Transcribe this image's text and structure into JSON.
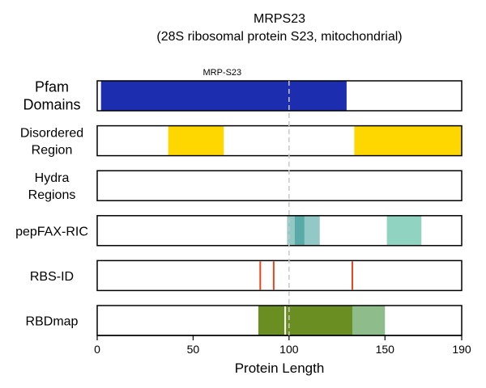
{
  "chart_data": {
    "type": "bar",
    "title": "MRPS23",
    "subtitle": "(28S ribosomal protein S23, mitochondrial)",
    "xlabel": "Protein Length",
    "xlim": [
      0,
      190
    ],
    "xticks": [
      0,
      50,
      100,
      150,
      190
    ],
    "reference_line": 100,
    "tracks": [
      {
        "label": [
          "Pfam",
          "Domains"
        ],
        "big": true,
        "segments": [
          {
            "start": 2,
            "end": 130,
            "color": "#1c2db0",
            "label": "MRP-S23"
          }
        ],
        "lines": []
      },
      {
        "label": [
          "Disordered",
          "Region"
        ],
        "segments": [
          {
            "start": 37,
            "end": 66,
            "color": "#ffd700"
          },
          {
            "start": 134,
            "end": 190,
            "color": "#ffd700"
          }
        ],
        "lines": []
      },
      {
        "label": [
          "Hydra",
          "Regions"
        ],
        "segments": [],
        "lines": []
      },
      {
        "label": [
          "pepFAX-RIC"
        ],
        "segments": [
          {
            "start": 99,
            "end": 116,
            "color": "#92c8c6"
          },
          {
            "start": 103,
            "end": 108,
            "color": "#5aaba8"
          },
          {
            "start": 151,
            "end": 169,
            "color": "#8fd3c0"
          }
        ],
        "lines": []
      },
      {
        "label": [
          "RBS-ID"
        ],
        "segments": [],
        "lines": [
          {
            "x": 85,
            "color": "#e8461c"
          },
          {
            "x": 92,
            "color": "#e8461c"
          },
          {
            "x": 133,
            "color": "#e8461c"
          }
        ]
      },
      {
        "label": [
          "RBDmap"
        ],
        "segments": [
          {
            "start": 84,
            "end": 133,
            "color": "#6b8e23"
          },
          {
            "start": 133,
            "end": 150,
            "color": "#8fbc8b"
          }
        ],
        "lines": [
          {
            "x": 98,
            "color": "#ffffff"
          }
        ]
      }
    ]
  }
}
